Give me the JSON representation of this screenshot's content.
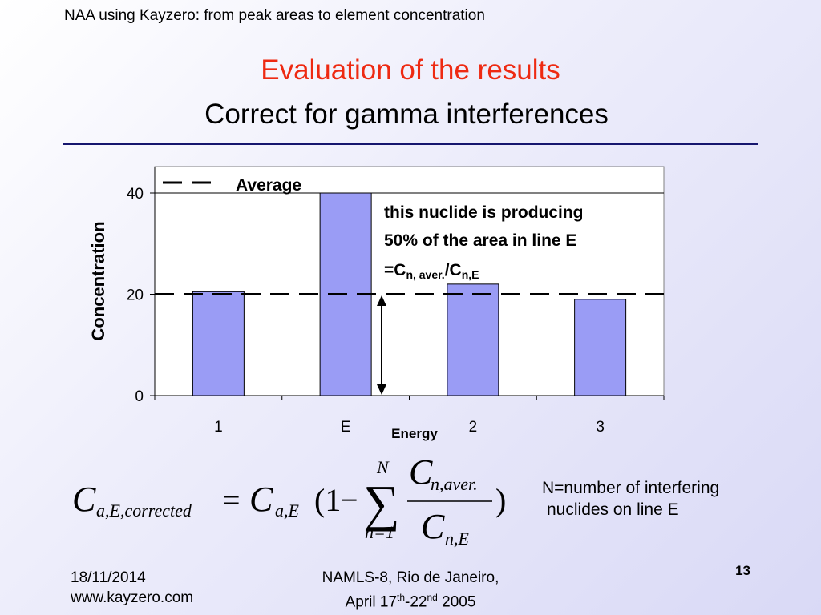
{
  "header": {
    "subtitle": "NAA using Kayzero: from peak areas to element concentration"
  },
  "title": {
    "line1": "Evaluation of the results",
    "line2": "Correct for gamma interferences"
  },
  "chart_data": {
    "type": "bar",
    "categories": [
      "1",
      "E",
      "2",
      "3"
    ],
    "values": [
      20.5,
      40,
      22,
      19
    ],
    "xlabel": "Energy",
    "ylabel": "Concentration",
    "ylim": [
      0,
      40
    ],
    "yticks": [
      0,
      20,
      40
    ],
    "average": 20,
    "legend": "Average",
    "legend_position": "top-left",
    "annotation": {
      "line1": "this nuclide is producing",
      "line2": "50% of the area in line E",
      "line3_prefix": "=C",
      "line3_sub1": "n, aver.",
      "line3_mid": "/C",
      "line3_sub2": "n,E"
    },
    "colors": {
      "bar": "#9a9cf5",
      "bar_stroke": "#000000",
      "average_line": "#000000"
    }
  },
  "formula": {
    "lhs": "C",
    "lhs_sub": "a,E,corrected",
    "eq": "=",
    "rhs": "C",
    "rhs_sub": "a,E",
    "open": "(1",
    "minus": "−",
    "sigma": "∑",
    "sum_upper": "N",
    "sum_lower": "n=1",
    "num": "C",
    "num_sub": "n,aver.",
    "den": "C",
    "den_sub": "n,E",
    "close": ")"
  },
  "note": {
    "line1": "N=number of interfering",
    "line2": "nuclides on line E"
  },
  "footer": {
    "date": "18/11/2014",
    "url": "www.kayzero.com",
    "conf_line1": "NAMLS-8, Rio de Janeiro,",
    "conf_line2_a": "April 17",
    "conf_line2_sup1": "th",
    "conf_line2_b": "-22",
    "conf_line2_sup2": "nd",
    "conf_line2_c": " 2005",
    "page": "13"
  }
}
